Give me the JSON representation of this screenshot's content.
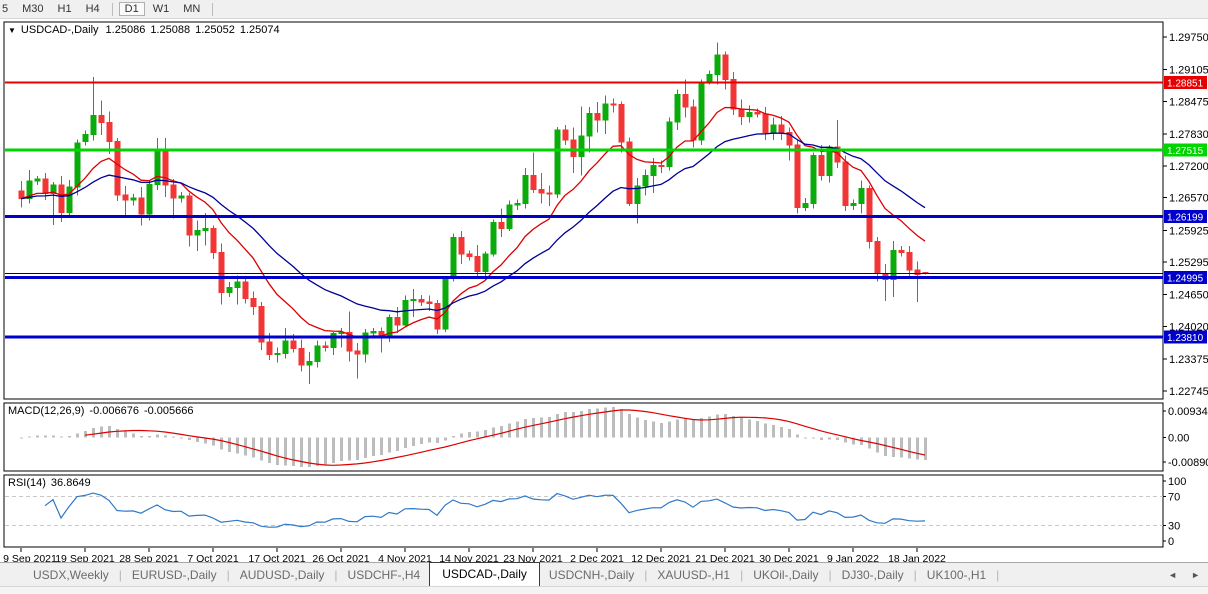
{
  "toolbar": {
    "timeframes": [
      "5",
      "M30",
      "H1",
      "H4",
      "D1",
      "W1",
      "MN"
    ],
    "active": "D1"
  },
  "chart_title": {
    "dropdown_icon": "▼",
    "symbol": "USDCAD-,Daily",
    "open": "1.25086",
    "high": "1.25088",
    "low": "1.25052",
    "close": "1.25074"
  },
  "price_axis": {
    "ticks": [
      "1.29750",
      "1.29105",
      "1.28475",
      "1.27830",
      "1.27200",
      "1.26570",
      "1.25925",
      "1.25295",
      "1.24650",
      "1.24020",
      "1.23375",
      "1.22745"
    ]
  },
  "chart_data": {
    "type": "candlestick",
    "title": "USDCAD-,Daily",
    "grid": false,
    "ylim": [
      1.2253,
      1.3005
    ],
    "x_tick_labels": [
      "9 Sep 2021",
      "19 Sep 2021",
      "28 Sep 2021",
      "7 Oct 2021",
      "17 Oct 2021",
      "26 Oct 2021",
      "4 Nov 2021",
      "14 Nov 2021",
      "23 Nov 2021",
      "2 Dec 2021",
      "12 Dec 2021",
      "21 Dec 2021",
      "30 Dec 2021",
      "9 Jan 2022",
      "18 Jan 2022"
    ],
    "bars_per_tick": 8,
    "colors": {
      "bull": "#0cab0c",
      "bear": "#f23535"
    },
    "moving_averages": [
      {
        "name": "fast-ma",
        "period": 12,
        "color": "#dd0000"
      },
      {
        "name": "slow-ma",
        "period": 26,
        "color": "#000096"
      }
    ],
    "horizontal_lines": [
      {
        "price": 1.28851,
        "label": "1.28851",
        "color": "#e60000",
        "width": 2
      },
      {
        "price": 1.27515,
        "label": "1.27515",
        "color": "#00d500",
        "width": 3
      },
      {
        "price": 1.26199,
        "label": "1.26199",
        "color": "#0000cc",
        "width": 3
      },
      {
        "price": 1.24995,
        "label": "1.24995",
        "color": "#0000cc",
        "width": 3
      },
      {
        "price": 1.2381,
        "label": "1.23810",
        "color": "#0000cc",
        "width": 3
      }
    ],
    "bid_line": {
      "price": 1.25074,
      "color": "#111111"
    },
    "ohlc": [
      [
        1.267,
        1.269,
        1.2638,
        1.2655
      ],
      [
        1.2655,
        1.2712,
        1.2646,
        1.269
      ],
      [
        1.269,
        1.27,
        1.2682,
        1.2694
      ],
      [
        1.2694,
        1.2706,
        1.2652,
        1.2665
      ],
      [
        1.2665,
        1.2688,
        1.2603,
        1.2682
      ],
      [
        1.2682,
        1.27,
        1.2609,
        1.2628
      ],
      [
        1.2628,
        1.2692,
        1.2618,
        1.2678
      ],
      [
        1.2678,
        1.2772,
        1.2661,
        1.2765
      ],
      [
        1.2768,
        1.279,
        1.276,
        1.2782
      ],
      [
        1.2782,
        1.2896,
        1.277,
        1.282
      ],
      [
        1.282,
        1.2849,
        1.2781,
        1.2806
      ],
      [
        1.2806,
        1.2828,
        1.2743,
        1.2768
      ],
      [
        1.2768,
        1.2775,
        1.265,
        1.2662
      ],
      [
        1.2662,
        1.268,
        1.2622,
        1.2652
      ],
      [
        1.2652,
        1.2664,
        1.2642,
        1.2656
      ],
      [
        1.2656,
        1.2678,
        1.2602,
        1.2625
      ],
      [
        1.2625,
        1.2692,
        1.2612,
        1.2683
      ],
      [
        1.2683,
        1.2775,
        1.2672,
        1.2748
      ],
      [
        1.2748,
        1.2775,
        1.2658,
        1.2682
      ],
      [
        1.2682,
        1.2694,
        1.2616,
        1.2656
      ],
      [
        1.2656,
        1.2668,
        1.2648,
        1.266
      ],
      [
        1.266,
        1.2666,
        1.256,
        1.2583
      ],
      [
        1.2583,
        1.2612,
        1.2552,
        1.2592
      ],
      [
        1.2592,
        1.2627,
        1.2562,
        1.2596
      ],
      [
        1.2596,
        1.2602,
        1.2536,
        1.2549
      ],
      [
        1.2549,
        1.2566,
        1.2446,
        1.2469
      ],
      [
        1.2469,
        1.249,
        1.2461,
        1.2479
      ],
      [
        1.2479,
        1.2503,
        1.2446,
        1.249
      ],
      [
        1.249,
        1.2501,
        1.2448,
        1.2458
      ],
      [
        1.2458,
        1.2471,
        1.2425,
        1.2442
      ],
      [
        1.2442,
        1.2451,
        1.2356,
        1.2371
      ],
      [
        1.2371,
        1.2389,
        1.2336,
        1.2347
      ],
      [
        1.2347,
        1.2361,
        1.2331,
        1.2349
      ],
      [
        1.2349,
        1.2399,
        1.2339,
        1.2373
      ],
      [
        1.2373,
        1.2387,
        1.2351,
        1.2359
      ],
      [
        1.2359,
        1.2376,
        1.2313,
        1.2326
      ],
      [
        1.2326,
        1.2352,
        1.2288,
        1.2333
      ],
      [
        1.2333,
        1.2374,
        1.2321,
        1.2364
      ],
      [
        1.2364,
        1.2372,
        1.2353,
        1.2361
      ],
      [
        1.2361,
        1.2391,
        1.2346,
        1.2388
      ],
      [
        1.2388,
        1.2399,
        1.2361,
        1.239
      ],
      [
        1.239,
        1.2432,
        1.2333,
        1.2354
      ],
      [
        1.2354,
        1.2369,
        1.2299,
        1.2348
      ],
      [
        1.2348,
        1.2397,
        1.2331,
        1.2389
      ],
      [
        1.2389,
        1.2399,
        1.2379,
        1.2392
      ],
      [
        1.2392,
        1.24,
        1.2351,
        1.238
      ],
      [
        1.238,
        1.2426,
        1.2371,
        1.242
      ],
      [
        1.242,
        1.2441,
        1.2389,
        1.2405
      ],
      [
        1.2405,
        1.2463,
        1.2401,
        1.2454
      ],
      [
        1.2454,
        1.2476,
        1.2421,
        1.2456
      ],
      [
        1.2456,
        1.2464,
        1.2443,
        1.2451
      ],
      [
        1.2451,
        1.2463,
        1.2433,
        1.2448
      ],
      [
        1.2448,
        1.2455,
        1.2387,
        1.2397
      ],
      [
        1.2397,
        1.2501,
        1.2391,
        1.2498
      ],
      [
        1.2498,
        1.2586,
        1.2491,
        1.2578
      ],
      [
        1.2578,
        1.2591,
        1.2526,
        1.2546
      ],
      [
        1.2546,
        1.2553,
        1.2533,
        1.2541
      ],
      [
        1.2541,
        1.2563,
        1.2496,
        1.2511
      ],
      [
        1.2511,
        1.2551,
        1.2493,
        1.2546
      ],
      [
        1.2546,
        1.2614,
        1.2541,
        1.2608
      ],
      [
        1.2608,
        1.2636,
        1.2579,
        1.2596
      ],
      [
        1.2596,
        1.2651,
        1.2591,
        1.2643
      ],
      [
        1.2643,
        1.2653,
        1.2633,
        1.2646
      ],
      [
        1.2646,
        1.2716,
        1.2636,
        1.2701
      ],
      [
        1.2701,
        1.2746,
        1.2666,
        1.2673
      ],
      [
        1.2673,
        1.2706,
        1.2646,
        1.2666
      ],
      [
        1.2666,
        1.2681,
        1.2641,
        1.2664
      ],
      [
        1.2664,
        1.2797,
        1.2656,
        1.2791
      ],
      [
        1.2791,
        1.2801,
        1.2761,
        1.2771
      ],
      [
        1.2771,
        1.2796,
        1.2706,
        1.2739
      ],
      [
        1.2739,
        1.2837,
        1.2701,
        1.2779
      ],
      [
        1.2779,
        1.2836,
        1.2746,
        1.2824
      ],
      [
        1.2824,
        1.2846,
        1.2786,
        1.2811
      ],
      [
        1.2811,
        1.2859,
        1.2783,
        1.2842
      ],
      [
        1.2842,
        1.2853,
        1.2826,
        1.2841
      ],
      [
        1.2841,
        1.2847,
        1.2746,
        1.2767
      ],
      [
        1.2767,
        1.2776,
        1.2641,
        1.2646
      ],
      [
        1.2646,
        1.2696,
        1.2606,
        1.268
      ],
      [
        1.268,
        1.2713,
        1.2661,
        1.2701
      ],
      [
        1.2701,
        1.2736,
        1.2666,
        1.2721
      ],
      [
        1.2721,
        1.2731,
        1.2706,
        1.2719
      ],
      [
        1.2719,
        1.2816,
        1.2711,
        1.2807
      ],
      [
        1.2807,
        1.2871,
        1.2791,
        1.2861
      ],
      [
        1.2861,
        1.2891,
        1.2816,
        1.2836
      ],
      [
        1.2836,
        1.2851,
        1.2756,
        1.2771
      ],
      [
        1.2771,
        1.2891,
        1.2761,
        1.2886
      ],
      [
        1.2886,
        1.2909,
        1.2881,
        1.2901
      ],
      [
        1.2901,
        1.2964,
        1.2881,
        1.2939
      ],
      [
        1.2939,
        1.2946,
        1.2871,
        1.2891
      ],
      [
        1.2891,
        1.2906,
        1.2821,
        1.2833
      ],
      [
        1.2833,
        1.2851,
        1.2801,
        1.2818
      ],
      [
        1.2818,
        1.2839,
        1.2806,
        1.2826
      ],
      [
        1.2826,
        1.2834,
        1.2816,
        1.2823
      ],
      [
        1.2823,
        1.2836,
        1.2771,
        1.2786
      ],
      [
        1.2786,
        1.2816,
        1.2771,
        1.2801
      ],
      [
        1.2801,
        1.2819,
        1.2771,
        1.2786
      ],
      [
        1.2786,
        1.2796,
        1.2731,
        1.2761
      ],
      [
        1.2761,
        1.2771,
        1.2626,
        1.2638
      ],
      [
        1.2638,
        1.2656,
        1.2631,
        1.2646
      ],
      [
        1.2646,
        1.2746,
        1.2636,
        1.2741
      ],
      [
        1.2741,
        1.2761,
        1.2691,
        1.2701
      ],
      [
        1.2701,
        1.2761,
        1.2687,
        1.2757
      ],
      [
        1.2757,
        1.2811,
        1.2716,
        1.2728
      ],
      [
        1.2728,
        1.2741,
        1.2631,
        1.2642
      ],
      [
        1.2642,
        1.2653,
        1.2633,
        1.2646
      ],
      [
        1.2646,
        1.2691,
        1.2626,
        1.2675
      ],
      [
        1.2675,
        1.2681,
        1.2556,
        1.257
      ],
      [
        1.257,
        1.2579,
        1.2491,
        1.2507
      ],
      [
        1.2507,
        1.2526,
        1.2453,
        1.2495
      ],
      [
        1.2495,
        1.2571,
        1.2461,
        1.2553
      ],
      [
        1.2553,
        1.2561,
        1.2541,
        1.2549
      ],
      [
        1.2549,
        1.2561,
        1.2501,
        1.2514
      ],
      [
        1.2514,
        1.2531,
        1.2451,
        1.2505
      ],
      [
        1.25086,
        1.25088,
        1.25052,
        1.25074
      ]
    ]
  },
  "macd": {
    "label": "MACD(12,26,9)",
    "main_value": "-0.006676",
    "signal_value": "-0.005666",
    "axis_max": "0.009345",
    "axis_zero": "0.00",
    "axis_min": "-0.008902",
    "fast": 12,
    "slow": 26,
    "signal_period": 9,
    "histogram_color": "#bdbdbd",
    "signal_color": "#dd0000"
  },
  "rsi": {
    "label": "RSI(14)",
    "value": "36.8649",
    "axis": [
      "100",
      "70",
      "30",
      "0"
    ],
    "overbought": 70,
    "oversold": 30,
    "line_color": "#3078c8",
    "level_color": "#c8c8c8"
  },
  "tabs": {
    "items": [
      "USDX,Weekly",
      "EURUSD-,Daily",
      "AUDUSD-,Daily",
      "USDCHF-,H4",
      "USDCAD-,Daily",
      "USDCNH-,Daily",
      "XAUUSD-,H1",
      "UKOil-,Daily",
      "DJ30-,Daily",
      "UK100-,H1"
    ],
    "active": "USDCAD-,Daily",
    "scroll_left_icon": "◄",
    "scroll_right_icon": "►"
  }
}
